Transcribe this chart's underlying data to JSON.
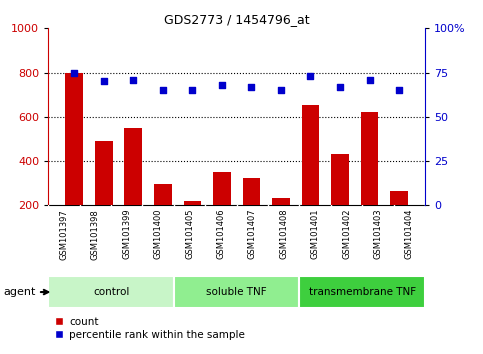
{
  "title": "GDS2773 / 1454796_at",
  "samples": [
    "GSM101397",
    "GSM101398",
    "GSM101399",
    "GSM101400",
    "GSM101405",
    "GSM101406",
    "GSM101407",
    "GSM101408",
    "GSM101401",
    "GSM101402",
    "GSM101403",
    "GSM101404"
  ],
  "counts": [
    800,
    490,
    550,
    295,
    220,
    350,
    325,
    235,
    655,
    430,
    620,
    265
  ],
  "percentiles": [
    75,
    70,
    71,
    65,
    65,
    68,
    67,
    65,
    73,
    67,
    71,
    65
  ],
  "groups": [
    {
      "label": "control",
      "start": 0,
      "end": 4,
      "color": "#c8f5c8"
    },
    {
      "label": "soluble TNF",
      "start": 4,
      "end": 8,
      "color": "#90ee90"
    },
    {
      "label": "transmembrane TNF",
      "start": 8,
      "end": 12,
      "color": "#3ecf3e"
    }
  ],
  "bar_color": "#cc0000",
  "dot_color": "#0000cc",
  "ylim_left": [
    200,
    1000
  ],
  "ylim_right": [
    0,
    100
  ],
  "yticks_left": [
    200,
    400,
    600,
    800,
    1000
  ],
  "yticks_right": [
    0,
    25,
    50,
    75,
    100
  ],
  "ytick_labels_right": [
    "0",
    "25",
    "50",
    "75",
    "100%"
  ],
  "grid_values": [
    400,
    600,
    800
  ],
  "background_color": "#ffffff",
  "xtick_bg_color": "#d0d0d0",
  "agent_label": "agent",
  "legend_count": "count",
  "legend_percentile": "percentile rank within the sample"
}
